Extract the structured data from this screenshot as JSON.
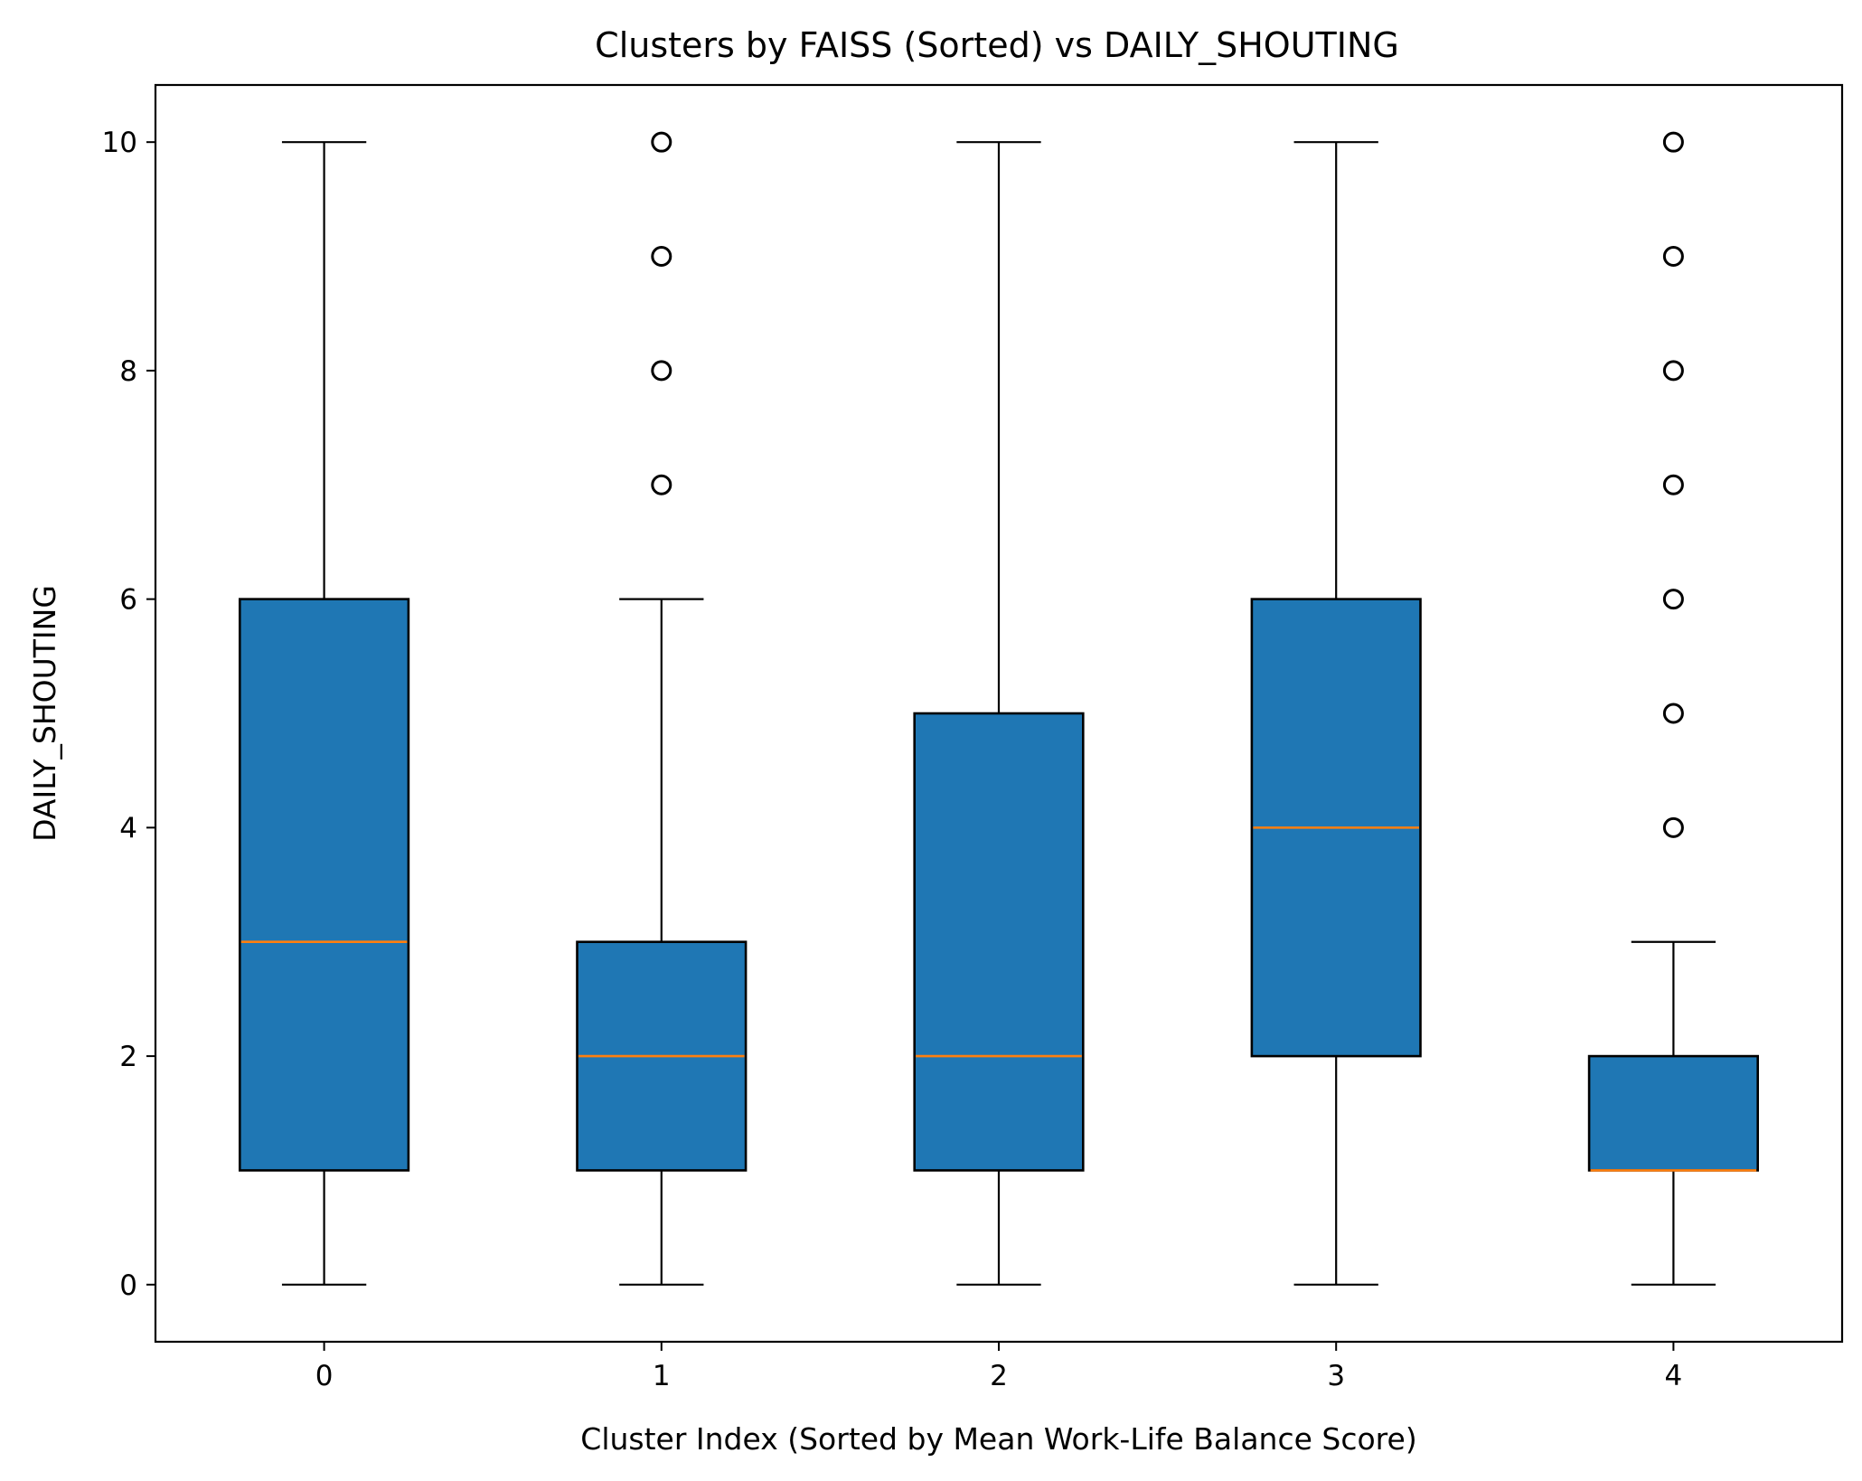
{
  "chart_data": {
    "type": "box",
    "title": "Clusters by FAISS (Sorted) vs DAILY_SHOUTING",
    "xlabel": "Cluster Index (Sorted by Mean Work-Life Balance Score)",
    "ylabel": "DAILY_SHOUTING",
    "categories": [
      "0",
      "1",
      "2",
      "3",
      "4"
    ],
    "ylim": [
      -0.5,
      10.5
    ],
    "yticks": [
      0,
      2,
      4,
      6,
      8,
      10
    ],
    "grid": false,
    "box_color": "#1f77b4",
    "median_color": "#ff7f0e",
    "boxes": [
      {
        "category": "0",
        "whisker_low": 0,
        "q1": 1,
        "median": 3,
        "q3": 6,
        "whisker_high": 10,
        "outliers": []
      },
      {
        "category": "1",
        "whisker_low": 0,
        "q1": 1,
        "median": 2,
        "q3": 3,
        "whisker_high": 6,
        "outliers": [
          7,
          8,
          9,
          10
        ]
      },
      {
        "category": "2",
        "whisker_low": 0,
        "q1": 1,
        "median": 2,
        "q3": 5,
        "whisker_high": 10,
        "outliers": []
      },
      {
        "category": "3",
        "whisker_low": 0,
        "q1": 2,
        "median": 4,
        "q3": 6,
        "whisker_high": 10,
        "outliers": []
      },
      {
        "category": "4",
        "whisker_low": 0,
        "q1": 1,
        "median": 1,
        "q3": 2,
        "whisker_high": 3,
        "outliers": [
          4,
          5,
          6,
          7,
          8,
          9,
          10
        ]
      }
    ]
  }
}
